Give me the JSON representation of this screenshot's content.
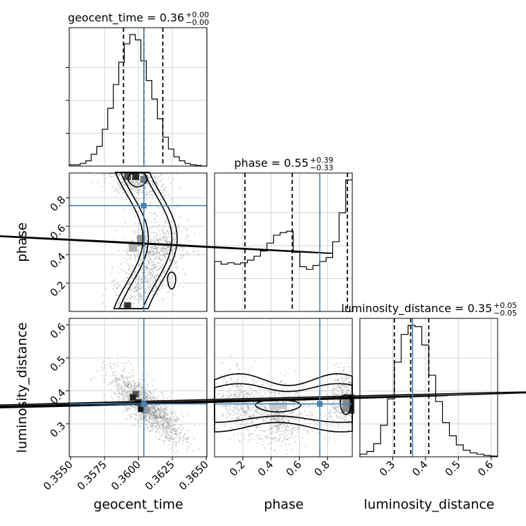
{
  "chart_data": {
    "type": "corner",
    "parameters": [
      "geocent_time",
      "phase",
      "luminosity_distance"
    ],
    "truths": {
      "geocent_time": 0.3604,
      "phase": 0.745,
      "luminosity_distance": 0.3605
    },
    "ranges": {
      "geocent_time": [
        0.3549,
        0.36505
      ],
      "phase": [
        0.0,
        0.975
      ],
      "luminosity_distance": [
        0.2,
        0.62
      ]
    },
    "grid": true,
    "titles": {
      "geocent_time": {
        "name": "geocent_time",
        "value": "0.36",
        "plus": "+0.00",
        "minus": "−0.00"
      },
      "phase": {
        "name": "phase",
        "value": "0.55",
        "plus": "+0.39",
        "minus": "−0.33"
      },
      "luminosity_distance": {
        "name": "luminosity_distance",
        "value": "0.35",
        "plus": "+0.05",
        "minus": "−0.05"
      }
    },
    "axis_labels": {
      "x": [
        "geocent_time",
        "phase",
        "luminosity_distance"
      ],
      "y": [
        "phase",
        "luminosity_distance"
      ]
    },
    "ticks": {
      "geocent_time": [
        "0.3550",
        "0.3575",
        "0.3600",
        "0.3625",
        "0.3650"
      ],
      "phase_x": [
        "0.2",
        "0.4",
        "0.6",
        "0.8"
      ],
      "phase_y": [
        "0.2",
        "0.4",
        "0.6",
        "0.8"
      ],
      "luminosity_distance_x": [
        "0.3",
        "0.4",
        "0.5",
        "0.6"
      ],
      "luminosity_distance_y": [
        "0.3",
        "0.4",
        "0.5",
        "0.6"
      ]
    },
    "tick_values": {
      "geocent_time": [
        0.355,
        0.3575,
        0.36,
        0.3625,
        0.365
      ],
      "phase": [
        0.2,
        0.4,
        0.6,
        0.8
      ],
      "luminosity_distance": [
        0.3,
        0.4,
        0.5,
        0.6
      ]
    },
    "quantiles": {
      "geocent_time": [
        0.3589,
        0.3604,
        0.3618
      ],
      "phase": [
        0.215,
        0.55,
        0.94
      ],
      "luminosity_distance": [
        0.305,
        0.355,
        0.41
      ]
    },
    "marginals": {
      "geocent_time": {
        "bins": [
          0.3549,
          0.36505
        ],
        "counts": [
          0.01,
          0.01,
          0.02,
          0.04,
          0.09,
          0.15,
          0.28,
          0.44,
          0.62,
          0.79,
          0.93,
          1.0,
          0.96,
          0.8,
          0.65,
          0.51,
          0.36,
          0.22,
          0.13,
          0.07,
          0.04,
          0.02,
          0.01,
          0.005,
          0.0
        ]
      },
      "phase": {
        "bins": [
          0.0,
          0.975
        ],
        "counts": [
          0.38,
          0.36,
          0.37,
          0.36,
          0.37,
          0.39,
          0.42,
          0.46,
          0.52,
          0.58,
          0.6,
          0.61,
          0.45,
          0.34,
          0.32,
          0.35,
          0.38,
          0.41,
          0.53,
          0.75,
          1.0
        ]
      },
      "luminosity_distance": {
        "bins": [
          0.2,
          0.62
        ],
        "counts": [
          0.02,
          0.04,
          0.1,
          0.24,
          0.44,
          0.72,
          0.93,
          1.0,
          0.99,
          0.85,
          0.62,
          0.42,
          0.26,
          0.16,
          0.09,
          0.05,
          0.03,
          0.02,
          0.01,
          0.005
        ]
      }
    }
  }
}
